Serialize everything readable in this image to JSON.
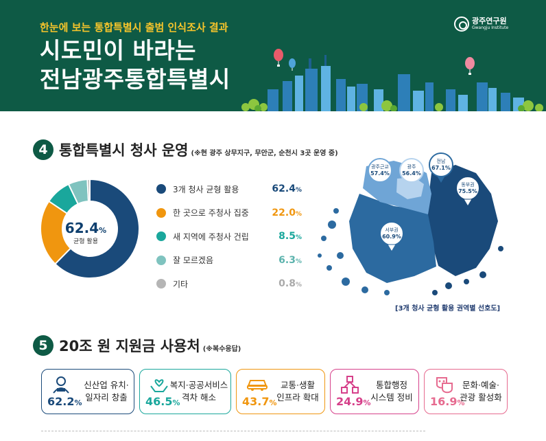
{
  "header": {
    "subtitle": "한눈에 보는 통합특별시 출범 인식조사 결과",
    "title_line1": "시도민이 바라는",
    "title_line2": "전남광주통합특별시",
    "logo_name": "광주연구원",
    "logo_en": "Gwangju Institute",
    "bg_color": "#0e5a45"
  },
  "section4": {
    "number": "4",
    "title": "통합특별시 청사 운영",
    "note": "(※현 광주 상무지구, 무안군, 순천시 3곳 운영 중)",
    "center_value": "62.4",
    "center_unit": "%",
    "center_label": "균형 활용",
    "legend": [
      {
        "label": "3개 청사 균형 활용",
        "value": "62.4",
        "unit": "%",
        "color": "#1a4a7a"
      },
      {
        "label": "한 곳으로 주청사 집중",
        "value": "22.0",
        "unit": "%",
        "color": "#f0960f"
      },
      {
        "label": "새 지역에 주청사 건립",
        "value": "8.5",
        "unit": "%",
        "color": "#1aa79c"
      },
      {
        "label": "잘 모르겠음",
        "value": "6.3",
        "unit": "%",
        "color": "#7fc3bf"
      },
      {
        "label": "기타",
        "value": "0.8",
        "unit": "%",
        "color": "#b5b5b5"
      }
    ],
    "map_pins": [
      {
        "name": "광주근교",
        "value": "57.4%"
      },
      {
        "name": "광주",
        "value": "56.4%"
      },
      {
        "name": "전남",
        "value": "67.1%"
      },
      {
        "name": "동부권",
        "value": "75.5%"
      },
      {
        "name": "서부권",
        "value": "60.9%"
      }
    ],
    "map_caption": "[3개 청사 균형 활용 권역별 선호도]"
  },
  "section5": {
    "number": "5",
    "title": "20조 원 지원금 사용처",
    "note": "(※복수응답)",
    "cards": [
      {
        "line1": "신산업 유치·",
        "line2": "일자리 창출",
        "value": "62.2",
        "unit": "%",
        "color": "#1a4a7a",
        "icon": "worker-icon"
      },
      {
        "line1": "복지·공공서비스",
        "line2": "격차 해소",
        "value": "46.5",
        "unit": "%",
        "color": "#1aa79c",
        "icon": "care-hands-icon"
      },
      {
        "line1": "교통·생활",
        "line2": "인프라 확대",
        "value": "43.7",
        "unit": "%",
        "color": "#f0960f",
        "icon": "car-icon"
      },
      {
        "line1": "통합행정",
        "line2": "시스템 정비",
        "value": "24.9",
        "unit": "%",
        "color": "#d6408a",
        "icon": "network-icon"
      },
      {
        "line1": "문화·예술·",
        "line2": "관광 활성화",
        "value": "16.9",
        "unit": "%",
        "color": "#e66a8f",
        "icon": "masks-icon"
      }
    ]
  }
}
